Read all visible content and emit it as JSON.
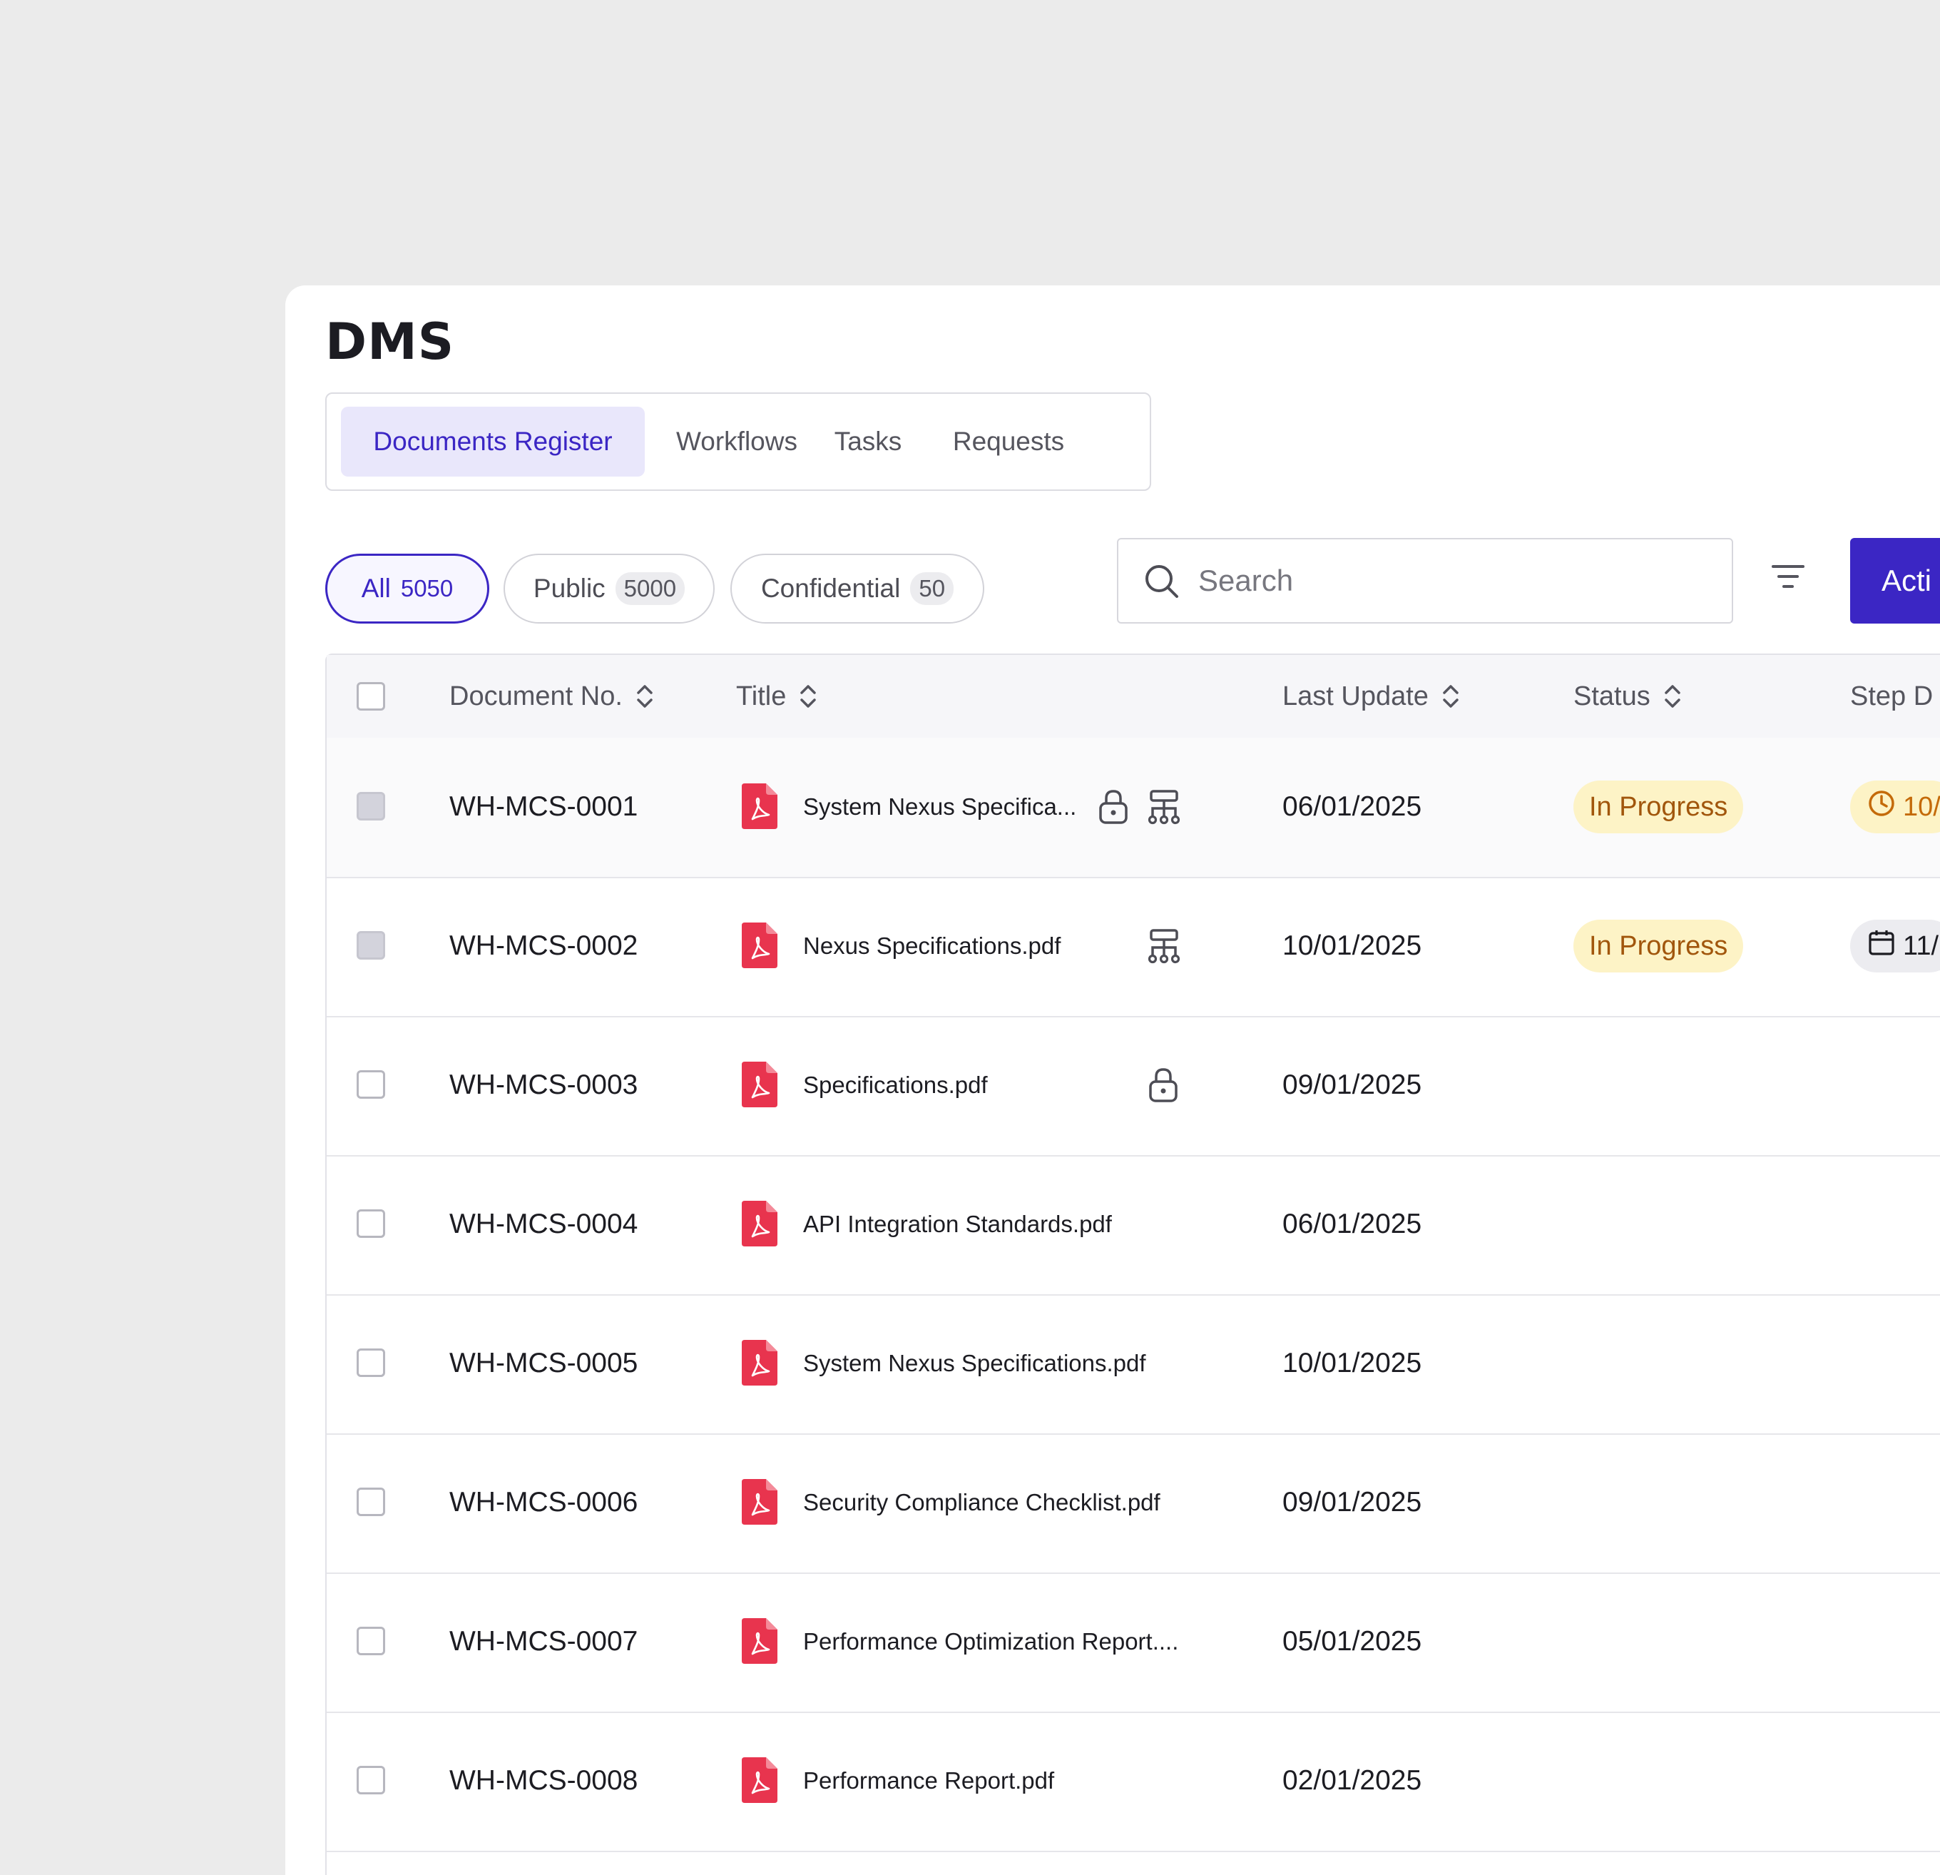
{
  "app": {
    "title": "DMS"
  },
  "tabs": [
    {
      "label": "Documents Register"
    },
    {
      "label": "Workflows"
    },
    {
      "label": "Tasks"
    },
    {
      "label": "Requests"
    }
  ],
  "filters": [
    {
      "label": "All",
      "count": "5050"
    },
    {
      "label": "Public",
      "count": "5000"
    },
    {
      "label": "Confidential",
      "count": "50"
    }
  ],
  "search": {
    "placeholder": "Search"
  },
  "action_button": {
    "label": "Acti"
  },
  "table": {
    "columns": [
      {
        "label": "Document No."
      },
      {
        "label": "Title"
      },
      {
        "label": "Last Update"
      },
      {
        "label": "Status"
      },
      {
        "label": "Step D"
      }
    ],
    "rows": [
      {
        "doc_no": "WH-MCS-0001",
        "title": "System Nexus Specifica...",
        "date": "06/01/2025",
        "status": "In Progress",
        "step": "10/",
        "step_icon": "clock-icon",
        "locked": true,
        "workflow": true
      },
      {
        "doc_no": "WH-MCS-0002",
        "title": "Nexus Specifications.pdf",
        "date": "10/01/2025",
        "status": "In Progress",
        "step": "11/",
        "step_icon": "calendar-icon",
        "locked": false,
        "workflow": true
      },
      {
        "doc_no": "WH-MCS-0003",
        "title": "Specifications.pdf",
        "date": "09/01/2025",
        "status": "",
        "step": "",
        "locked": true,
        "workflow": false
      },
      {
        "doc_no": "WH-MCS-0004",
        "title": "API Integration Standards.pdf",
        "date": "06/01/2025",
        "status": "",
        "step": "",
        "locked": false,
        "workflow": false
      },
      {
        "doc_no": "WH-MCS-0005",
        "title": "System Nexus Specifications.pdf",
        "date": "10/01/2025",
        "status": "",
        "step": "",
        "locked": false,
        "workflow": false
      },
      {
        "doc_no": "WH-MCS-0006",
        "title": "Security Compliance Checklist.pdf",
        "date": "09/01/2025",
        "status": "",
        "step": "",
        "locked": false,
        "workflow": false
      },
      {
        "doc_no": "WH-MCS-0007",
        "title": "Performance Optimization Report....",
        "date": "05/01/2025",
        "status": "",
        "step": "",
        "locked": false,
        "workflow": false
      },
      {
        "doc_no": "WH-MCS-0008",
        "title": "Performance Report.pdf",
        "date": "02/01/2025",
        "status": "",
        "step": "",
        "locked": false,
        "workflow": false
      }
    ]
  },
  "colors": {
    "accent": "#3b26c4",
    "pdf": "#e8344e",
    "badge_bg": "#fdf3c6",
    "badge_text": "#a1560c"
  }
}
